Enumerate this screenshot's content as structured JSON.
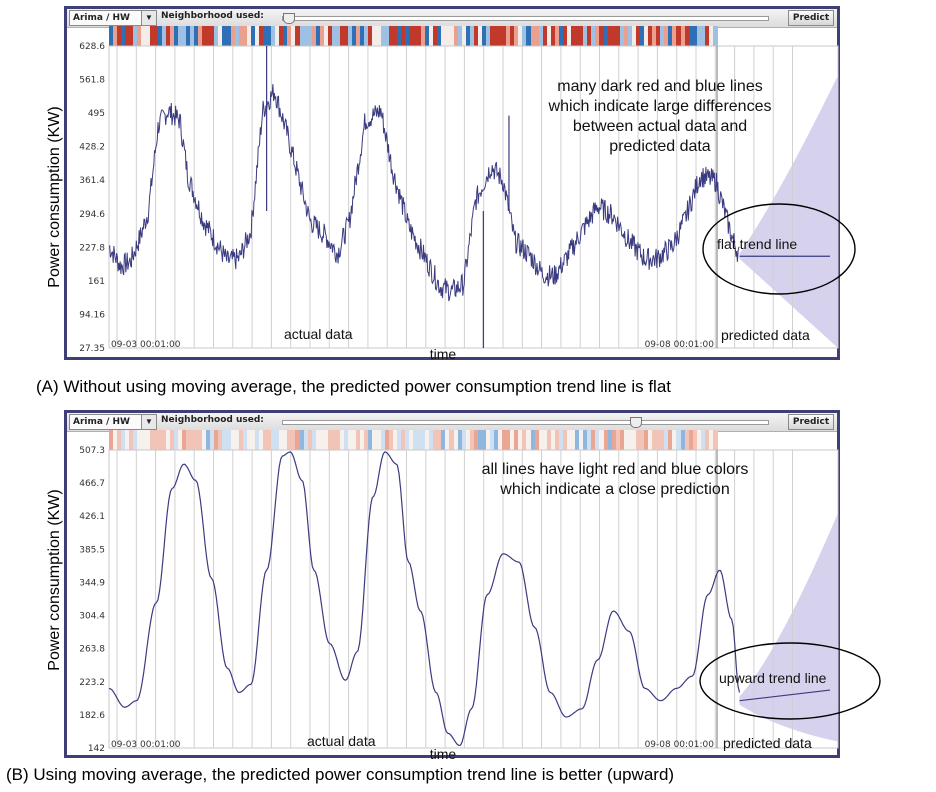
{
  "toolbar": {
    "model_select": "Arima / HW",
    "neighborhood_label": "Neighborhood used:",
    "predict_label": "Predict"
  },
  "colors": {
    "series": "#3b3b80",
    "forecast_band": "#cfcaea",
    "heat_red": "#c0392b",
    "heat_blue": "#2f6fb6",
    "frame": "#3f3f78"
  },
  "chart_data": [
    {
      "type": "line",
      "panel": "A",
      "ylabel": "Power consumption (KW)",
      "xlabel": "time",
      "ylim": [
        27.35,
        628.6
      ],
      "y_ticks": [
        628.6,
        561.8,
        495,
        428.2,
        361.4,
        294.6,
        227.8,
        161,
        94.16,
        27.35
      ],
      "x_tick_labels": [
        "09-03 00:01:00",
        "09-08 00:01:00"
      ],
      "grid": true,
      "actual_series": [
        [
          0,
          230
        ],
        [
          0.3,
          190
        ],
        [
          0.55,
          200
        ],
        [
          0.8,
          250
        ],
        [
          1.0,
          300
        ],
        [
          1.25,
          470
        ],
        [
          1.5,
          500
        ],
        [
          1.8,
          480
        ],
        [
          2.0,
          370
        ],
        [
          2.4,
          280
        ],
        [
          2.7,
          240
        ],
        [
          3.0,
          200
        ],
        [
          3.3,
          205
        ],
        [
          3.6,
          260
        ],
        [
          3.9,
          500
        ],
        [
          4.2,
          540
        ],
        [
          4.5,
          460
        ],
        [
          4.8,
          370
        ],
        [
          5.1,
          280
        ],
        [
          5.5,
          250
        ],
        [
          5.8,
          215
        ],
        [
          6.1,
          280
        ],
        [
          6.5,
          480
        ],
        [
          6.9,
          500
        ],
        [
          7.2,
          380
        ],
        [
          7.6,
          270
        ],
        [
          8.0,
          210
        ],
        [
          8.4,
          150
        ],
        [
          8.7,
          140
        ],
        [
          9.0,
          155
        ],
        [
          9.3,
          320
        ],
        [
          9.7,
          390
        ],
        [
          10.0,
          360
        ],
        [
          10.3,
          240
        ],
        [
          10.7,
          210
        ],
        [
          11.0,
          175
        ],
        [
          11.3,
          170
        ],
        [
          11.6,
          205
        ],
        [
          12.0,
          260
        ],
        [
          12.4,
          310
        ],
        [
          12.8,
          290
        ],
        [
          13.2,
          240
        ],
        [
          13.6,
          205
        ],
        [
          13.9,
          205
        ],
        [
          14.3,
          230
        ],
        [
          14.6,
          280
        ],
        [
          15.0,
          370
        ],
        [
          15.4,
          360
        ],
        [
          15.8,
          250
        ],
        [
          16.0,
          210
        ]
      ],
      "forecast_line": [
        [
          16.0,
          210
        ],
        [
          18.5,
          210
        ]
      ],
      "forecast_band": {
        "upper": [
          [
            16.0,
            215
          ],
          [
            17.0,
            330
          ],
          [
            18.5,
            570
          ]
        ],
        "lower": [
          [
            16.0,
            205
          ],
          [
            17.2,
            120
          ],
          [
            18.5,
            27.35
          ]
        ]
      },
      "annotations": {
        "main": "many dark red and blue lines\nwhich indicate large differences\nbetween actual data and\npredicted data",
        "trend": "flat trend line",
        "actual": "actual data",
        "predicted": "predicted data"
      },
      "caption": "(A) Without using  moving average,  the predicted power consumption trend line is flat"
    },
    {
      "type": "line",
      "panel": "B",
      "ylabel": "Power consumption (KW)",
      "xlabel": "time",
      "ylim": [
        142,
        507.3
      ],
      "y_ticks": [
        507.3,
        466.7,
        426.1,
        385.5,
        344.9,
        304.4,
        263.8,
        223.2,
        182.6,
        142
      ],
      "x_tick_labels": [
        "09-03 00:01:00",
        "09-08 00:01:00"
      ],
      "grid": true,
      "actual_series": [
        [
          0,
          215
        ],
        [
          0.4,
          192
        ],
        [
          0.7,
          200
        ],
        [
          1.2,
          320
        ],
        [
          1.6,
          460
        ],
        [
          1.9,
          490
        ],
        [
          2.2,
          470
        ],
        [
          2.6,
          350
        ],
        [
          3.0,
          240
        ],
        [
          3.3,
          210
        ],
        [
          3.6,
          220
        ],
        [
          4.0,
          360
        ],
        [
          4.4,
          500
        ],
        [
          4.6,
          505
        ],
        [
          4.9,
          470
        ],
        [
          5.2,
          360
        ],
        [
          5.6,
          270
        ],
        [
          6.0,
          225
        ],
        [
          6.3,
          260
        ],
        [
          6.7,
          450
        ],
        [
          7.0,
          505
        ],
        [
          7.3,
          490
        ],
        [
          7.6,
          370
        ],
        [
          7.9,
          310
        ],
        [
          8.3,
          210
        ],
        [
          8.6,
          160
        ],
        [
          8.9,
          145
        ],
        [
          9.2,
          190
        ],
        [
          9.6,
          330
        ],
        [
          10.0,
          380
        ],
        [
          10.4,
          370
        ],
        [
          10.8,
          290
        ],
        [
          11.2,
          210
        ],
        [
          11.6,
          180
        ],
        [
          12.0,
          190
        ],
        [
          12.4,
          250
        ],
        [
          12.8,
          310
        ],
        [
          13.2,
          285
        ],
        [
          13.6,
          215
        ],
        [
          14.0,
          200
        ],
        [
          14.4,
          215
        ],
        [
          14.8,
          230
        ],
        [
          15.2,
          330
        ],
        [
          15.5,
          360
        ],
        [
          15.8,
          300
        ],
        [
          16.0,
          210
        ]
      ],
      "forecast_line": [
        [
          16.0,
          200
        ],
        [
          18.5,
          213
        ]
      ],
      "forecast_band": {
        "upper": [
          [
            16.0,
            205
          ],
          [
            17.0,
            260
          ],
          [
            18.5,
            430
          ]
        ],
        "lower": [
          [
            16.0,
            195
          ],
          [
            17.0,
            165
          ],
          [
            18.5,
            150
          ]
        ]
      },
      "annotations": {
        "main": "all lines have light red and blue colors\nwhich indicate a close prediction",
        "trend": "upward trend line",
        "actual": "actual data",
        "predicted": "predicted data"
      },
      "caption": "(B) Using moving average,  the predicted power consumption trend line is better (upward)"
    }
  ]
}
